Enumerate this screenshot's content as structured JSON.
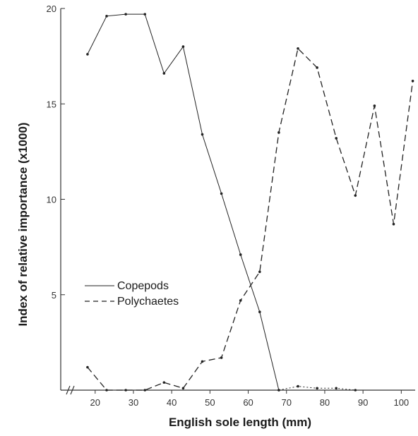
{
  "chart_data": {
    "type": "line",
    "title": "",
    "xlabel": "English sole length (mm)",
    "ylabel": "Index of relative importance (x1000)",
    "xlim": [
      11,
      104
    ],
    "ylim": [
      0,
      20
    ],
    "x_ticks": [
      20,
      30,
      40,
      50,
      60,
      70,
      80,
      90,
      100
    ],
    "y_ticks": [
      5,
      10,
      15,
      20
    ],
    "grid": false,
    "legend_position": "center-left",
    "colors": {
      "axis": "#333333",
      "line": "#222222"
    },
    "series": [
      {
        "name": "Copepods",
        "style": "solid",
        "x": [
          18,
          23,
          28,
          33,
          38,
          43,
          48,
          53,
          58,
          63,
          68
        ],
        "y": [
          17.6,
          19.6,
          19.7,
          19.7,
          16.6,
          18.0,
          13.4,
          10.3,
          7.1,
          4.1,
          0.0
        ]
      },
      {
        "name": "Polychaetes",
        "style": "dashed",
        "x": [
          18,
          23,
          28,
          33,
          38,
          43,
          48,
          53,
          58,
          63,
          68,
          73,
          78,
          83,
          88,
          93,
          98,
          103
        ],
        "y": [
          1.2,
          0.0,
          0.0,
          0.0,
          0.4,
          0.1,
          1.5,
          1.7,
          4.7,
          6.2,
          13.5,
          17.9,
          16.9,
          13.2,
          10.2,
          14.9,
          8.7,
          16.2
        ]
      },
      {
        "name": "",
        "style": "dotted",
        "x": [
          68,
          73,
          78,
          83,
          88
        ],
        "y": [
          0.0,
          0.2,
          0.1,
          0.1,
          0.0
        ]
      }
    ]
  }
}
